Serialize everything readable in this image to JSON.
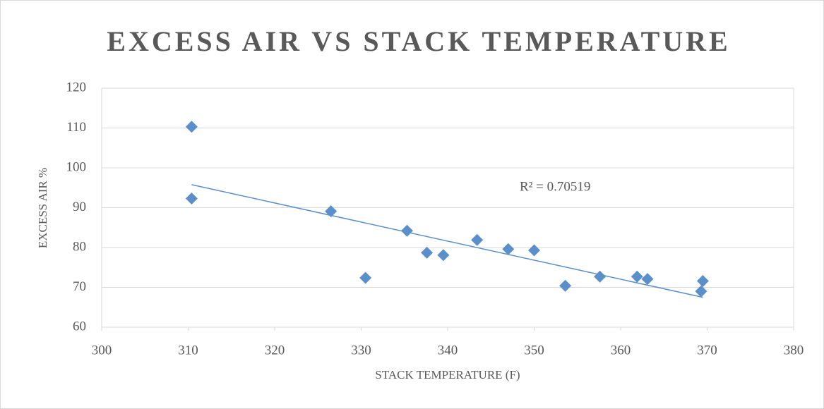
{
  "chart_data": {
    "type": "scatter",
    "title": "EXCESS AIR VS STACK TEMPERATURE",
    "x_label": "STACK TEMPERATURE (F)",
    "y_label": "EXCESS AIR %",
    "annotation": "R² = 0.70519",
    "trendline": "linear",
    "color": "#5b8fc9",
    "trend_color": "#5b8fc9",
    "grid": true,
    "x": [
      310.4,
      310.4,
      326.5,
      330.5,
      335.3,
      337.6,
      339.5,
      343.4,
      347.0,
      350.0,
      353.6,
      357.6,
      361.9,
      363.1,
      369.3,
      369.5
    ],
    "values": [
      110.3,
      92.3,
      89.1,
      72.4,
      84.2,
      78.7,
      78.1,
      81.9,
      79.6,
      79.3,
      70.4,
      72.7,
      72.7,
      72.1,
      69.0,
      71.6
    ],
    "xlim": [
      300,
      380
    ],
    "xticks": [
      300,
      310,
      320,
      330,
      340,
      350,
      360,
      370,
      380
    ],
    "ylim": [
      60,
      120
    ],
    "yticks": [
      60,
      70,
      80,
      90,
      100,
      110,
      120
    ]
  }
}
